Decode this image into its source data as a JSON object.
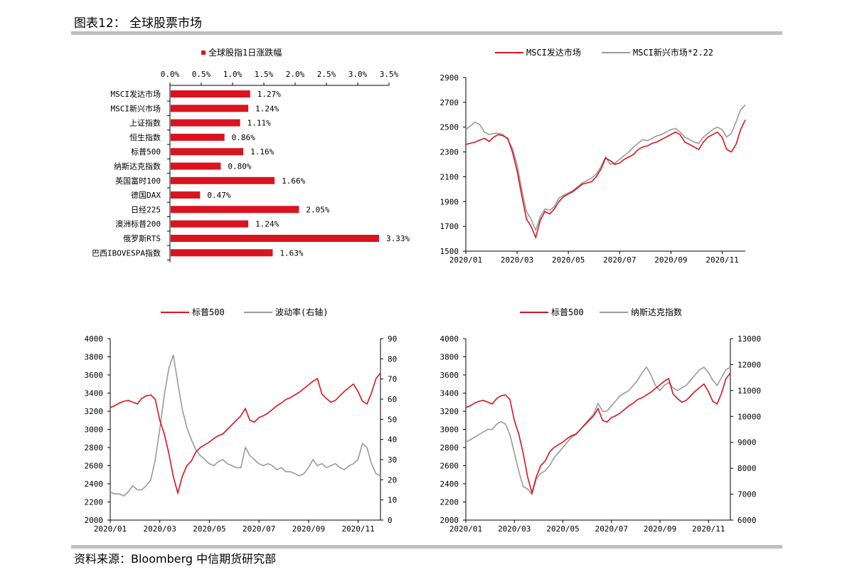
{
  "page": {
    "title": "图表12： 全球股票市场",
    "source": "资料来源：Bloomberg 中信期货研究部"
  },
  "colors": {
    "red": "#d9141f",
    "gray": "#9a9a9a",
    "axis": "#000000"
  },
  "chart_data": [
    {
      "id": "bar",
      "type": "bar",
      "orientation": "horizontal",
      "title": "",
      "legend": [
        "全球股指1日涨跌幅"
      ],
      "xlim": [
        0,
        3.5
      ],
      "xticks": [
        "0.0%",
        "0.5%",
        "1.0%",
        "1.5%",
        "2.0%",
        "2.5%",
        "3.0%",
        "3.5%"
      ],
      "categories": [
        "MSCI发达市场",
        "MSCI新兴市场",
        "上证指数",
        "恒生指数",
        "标普500",
        "纳斯达克指数",
        "英国富时100",
        "德国DAX",
        "日经225",
        "澳洲标普200",
        "俄罗斯RTS",
        "巴西IBOVESPA指数"
      ],
      "values": [
        1.27,
        1.24,
        1.11,
        0.86,
        1.16,
        0.8,
        1.66,
        0.47,
        2.05,
        1.24,
        3.33,
        1.63
      ],
      "labels": [
        "1.27%",
        "1.24%",
        "1.11%",
        "0.86%",
        "1.16%",
        "0.80%",
        "1.66%",
        "0.47%",
        "2.05%",
        "1.24%",
        "3.33%",
        "1.63%"
      ]
    },
    {
      "id": "msci",
      "type": "line",
      "legend": [
        "MSCI发达市场",
        "MSCI新兴市场*2.22"
      ],
      "xticks": [
        "2020/01",
        "2020/03",
        "2020/05",
        "2020/07",
        "2020/09",
        "2020/11"
      ],
      "ylim": [
        1500,
        2900
      ],
      "yticks": [
        "1500",
        "1700",
        "1900",
        "2100",
        "2300",
        "2500",
        "2700",
        "2900"
      ],
      "series": [
        {
          "name": "MSCI发达市场",
          "values": [
            2360,
            2370,
            2380,
            2395,
            2410,
            2385,
            2420,
            2440,
            2430,
            2410,
            2300,
            2150,
            1950,
            1760,
            1700,
            1610,
            1750,
            1820,
            1800,
            1840,
            1900,
            1940,
            1960,
            1980,
            2010,
            2040,
            2050,
            2060,
            2100,
            2160,
            2250,
            2230,
            2200,
            2210,
            2240,
            2260,
            2280,
            2320,
            2340,
            2350,
            2370,
            2380,
            2400,
            2420,
            2440,
            2460,
            2440,
            2380,
            2360,
            2340,
            2320,
            2380,
            2420,
            2440,
            2460,
            2420,
            2320,
            2300,
            2360,
            2480,
            2560
          ]
        },
        {
          "name": "MSCI新兴市场*2.22",
          "values": [
            2480,
            2510,
            2540,
            2520,
            2460,
            2440,
            2450,
            2450,
            2440,
            2400,
            2330,
            2200,
            2000,
            1820,
            1760,
            1670,
            1780,
            1840,
            1830,
            1860,
            1930,
            1950,
            1970,
            1990,
            2020,
            2050,
            2070,
            2090,
            2120,
            2180,
            2260,
            2200,
            2210,
            2240,
            2270,
            2300,
            2340,
            2370,
            2400,
            2390,
            2410,
            2430,
            2440,
            2460,
            2480,
            2490,
            2460,
            2420,
            2400,
            2380,
            2370,
            2420,
            2450,
            2480,
            2500,
            2480,
            2420,
            2450,
            2540,
            2640,
            2680
          ]
        }
      ]
    },
    {
      "id": "vol",
      "type": "line",
      "legend": [
        "标普500",
        "波动率(右轴)"
      ],
      "xticks": [
        "2020/01",
        "2020/03",
        "2020/05",
        "2020/07",
        "2020/09",
        "2020/11"
      ],
      "ylim": [
        2000,
        4000
      ],
      "yticks": [
        "2000",
        "2200",
        "2400",
        "2600",
        "2800",
        "3000",
        "3200",
        "3400",
        "3600",
        "3800",
        "4000"
      ],
      "y2lim": [
        0,
        90
      ],
      "y2ticks": [
        "0",
        "10",
        "20",
        "30",
        "40",
        "50",
        "60",
        "70",
        "80",
        "90"
      ],
      "series": [
        {
          "name": "标普500",
          "axis": "left",
          "values": [
            3240,
            3260,
            3290,
            3310,
            3320,
            3300,
            3280,
            3340,
            3370,
            3380,
            3330,
            3100,
            2950,
            2740,
            2480,
            2300,
            2480,
            2600,
            2650,
            2750,
            2800,
            2830,
            2860,
            2900,
            2930,
            2950,
            3000,
            3050,
            3100,
            3150,
            3230,
            3100,
            3080,
            3130,
            3150,
            3180,
            3220,
            3260,
            3290,
            3330,
            3350,
            3380,
            3410,
            3450,
            3490,
            3530,
            3560,
            3390,
            3340,
            3300,
            3320,
            3370,
            3420,
            3460,
            3500,
            3420,
            3310,
            3280,
            3400,
            3560,
            3620
          ]
        },
        {
          "name": "波动率(右轴)",
          "axis": "right",
          "values": [
            14,
            13,
            13,
            12,
            14,
            17,
            15,
            15,
            17,
            20,
            30,
            45,
            62,
            75,
            82,
            68,
            55,
            46,
            40,
            35,
            32,
            30,
            28,
            27,
            29,
            30,
            28,
            27,
            26,
            26,
            36,
            32,
            30,
            28,
            27,
            28,
            27,
            25,
            26,
            24,
            24,
            23,
            22,
            23,
            26,
            30,
            27,
            28,
            26,
            27,
            28,
            26,
            25,
            27,
            28,
            30,
            38,
            36,
            28,
            23,
            22
          ]
        }
      ]
    },
    {
      "id": "nasdaq",
      "type": "line",
      "legend": [
        "标普500",
        "纳斯达克指数"
      ],
      "xticks": [
        "2020/01",
        "2020/03",
        "2020/05",
        "2020/07",
        "2020/09",
        "2020/11"
      ],
      "ylim": [
        2000,
        4000
      ],
      "yticks": [
        "2000",
        "2200",
        "2400",
        "2600",
        "2800",
        "3000",
        "3200",
        "3400",
        "3600",
        "3800",
        "4000"
      ],
      "y2lim": [
        6000,
        13000
      ],
      "y2ticks": [
        "6000",
        "7000",
        "8000",
        "9000",
        "10000",
        "11000",
        "12000",
        "13000"
      ],
      "series": [
        {
          "name": "标普500",
          "axis": "left",
          "values": [
            3240,
            3260,
            3290,
            3310,
            3320,
            3300,
            3280,
            3340,
            3370,
            3380,
            3330,
            3100,
            2950,
            2740,
            2480,
            2300,
            2480,
            2600,
            2650,
            2750,
            2800,
            2830,
            2860,
            2900,
            2930,
            2950,
            3000,
            3050,
            3100,
            3150,
            3230,
            3100,
            3080,
            3130,
            3150,
            3180,
            3220,
            3260,
            3290,
            3330,
            3350,
            3380,
            3410,
            3450,
            3490,
            3530,
            3560,
            3390,
            3340,
            3300,
            3320,
            3370,
            3420,
            3460,
            3500,
            3420,
            3310,
            3280,
            3400,
            3560,
            3620
          ]
        },
        {
          "name": "纳斯达克指数",
          "axis": "right",
          "values": [
            9000,
            9100,
            9200,
            9300,
            9400,
            9500,
            9500,
            9700,
            9800,
            9700,
            9300,
            8600,
            7900,
            7300,
            7200,
            7000,
            7600,
            7800,
            7900,
            8100,
            8400,
            8600,
            8800,
            9000,
            9200,
            9300,
            9500,
            9700,
            9900,
            10100,
            10500,
            10200,
            10200,
            10400,
            10600,
            10800,
            10900,
            11000,
            11200,
            11400,
            11700,
            11900,
            11600,
            11200,
            11000,
            11200,
            11300,
            11100,
            11000,
            11100,
            11200,
            11400,
            11600,
            11800,
            11900,
            11700,
            11400,
            11200,
            11500,
            11800,
            11900
          ]
        }
      ]
    }
  ]
}
